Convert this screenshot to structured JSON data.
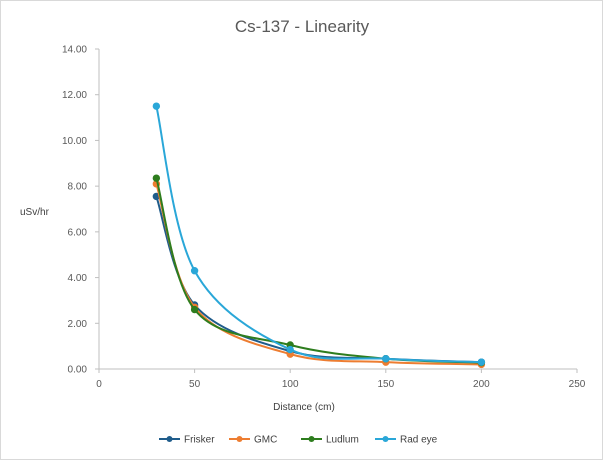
{
  "chart_data": {
    "type": "line",
    "title": "Cs-137 - Linearity",
    "xlabel": "Distance (cm)",
    "ylabel": "uSv/hr",
    "xlim": [
      0,
      250
    ],
    "ylim": [
      0,
      14
    ],
    "x_ticks": [
      0,
      50,
      100,
      150,
      200,
      250
    ],
    "y_ticks": [
      "0.00",
      "2.00",
      "4.00",
      "6.00",
      "8.00",
      "10.00",
      "12.00",
      "14.00"
    ],
    "grid": false,
    "legend_position": "bottom",
    "smooth": true,
    "series": [
      {
        "name": "Frisker",
        "color": "#1f5c8b",
        "points": [
          [
            30,
            7.55
          ],
          [
            50,
            2.8
          ],
          [
            100,
            0.78
          ],
          [
            150,
            0.45
          ],
          [
            200,
            0.3
          ]
        ]
      },
      {
        "name": "GMC",
        "color": "#ed7d31",
        "points": [
          [
            30,
            8.1
          ],
          [
            50,
            2.7
          ],
          [
            100,
            0.65
          ],
          [
            150,
            0.3
          ],
          [
            200,
            0.2
          ]
        ]
      },
      {
        "name": "Ludlum",
        "color": "#2e7d1e",
        "points": [
          [
            30,
            8.35
          ],
          [
            50,
            2.6
          ],
          [
            100,
            1.05
          ],
          [
            150,
            0.45
          ],
          [
            200,
            0.28
          ]
        ]
      },
      {
        "name": "Rad eye",
        "color": "#2aa7d8",
        "points": [
          [
            30,
            11.5
          ],
          [
            50,
            4.3
          ],
          [
            100,
            0.85
          ],
          [
            150,
            0.45
          ],
          [
            200,
            0.3
          ]
        ]
      }
    ]
  }
}
